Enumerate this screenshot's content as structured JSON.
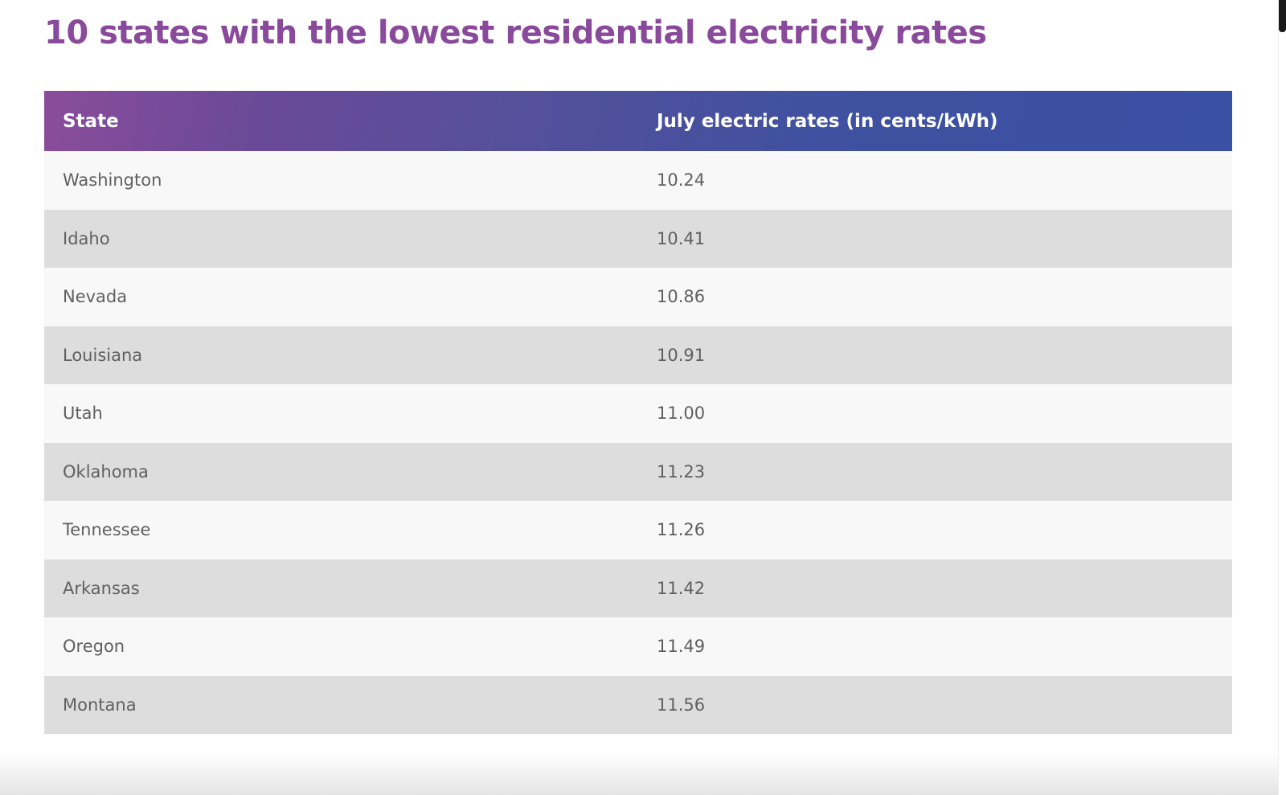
{
  "page": {
    "title": "10 states with the lowest residential electricity rates"
  },
  "table": {
    "headers": [
      "State",
      "July electric rates (in cents/kWh)"
    ],
    "rows": [
      {
        "state": "Washington",
        "rate": "10.24"
      },
      {
        "state": "Idaho",
        "rate": "10.41"
      },
      {
        "state": "Nevada",
        "rate": "10.86"
      },
      {
        "state": "Louisiana",
        "rate": "10.91"
      },
      {
        "state": "Utah",
        "rate": "11.00"
      },
      {
        "state": "Oklahoma",
        "rate": "11.23"
      },
      {
        "state": "Tennessee",
        "rate": "11.26"
      },
      {
        "state": "Arkansas",
        "rate": "11.42"
      },
      {
        "state": "Oregon",
        "rate": "11.49"
      },
      {
        "state": "Montana",
        "rate": "11.56"
      }
    ]
  },
  "colors": {
    "title": "#8a4a9c",
    "header_gradient_start": "#8a4c9b",
    "header_gradient_end": "#3a50a2",
    "row_light": "#f8f8f8",
    "row_dark": "#dddddd",
    "cell_text": "#606062"
  }
}
